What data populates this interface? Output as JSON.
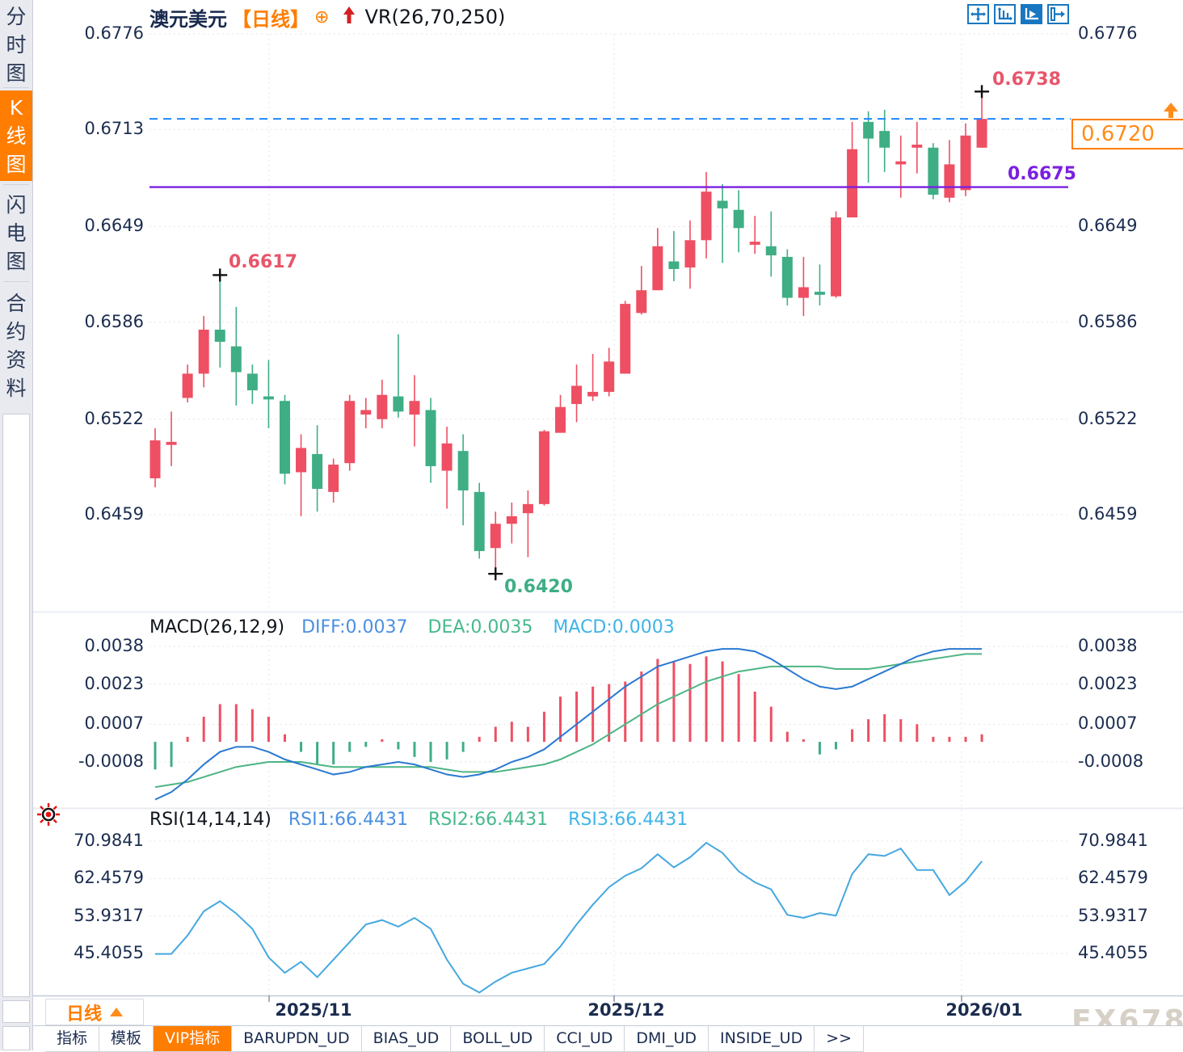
{
  "colors": {
    "up": "#ee4f63",
    "down": "#3fae85",
    "diff_line": "#2979d1",
    "dea_line": "#4db584",
    "rsi_line": "#45a8e0",
    "accent": "#ff7d00",
    "support": "#7b1fe0",
    "dashed": "#1e88ff",
    "grid": "#e4e4e8",
    "axis_text": "#1b2c4f"
  },
  "sidebar": {
    "tabs": [
      {
        "label": "分时图",
        "active": false
      },
      {
        "label": "K线图",
        "active": true
      },
      {
        "label": "闪电图",
        "active": false
      },
      {
        "label": "合约资料",
        "active": false
      }
    ]
  },
  "header": {
    "symbol": "澳元美元",
    "period_tag": "【日线】",
    "attach_icon": "⊕",
    "indicator": "VR(26,70,250)"
  },
  "toolbar": {
    "icons": [
      "pan-crosshair-icon",
      "axis-scale-icon",
      "axis-play-icon",
      "exit-right-icon"
    ]
  },
  "annotations": {
    "swing_high": "0.6617",
    "chart_high": "0.6738",
    "chart_low": "0.6420",
    "support_label": "0.6675",
    "last_price": "0.6720"
  },
  "macd_header": {
    "title": "MACD(26,12,9)",
    "diff": "DIFF:0.0037",
    "dea": "DEA:0.0035",
    "macd": "MACD:0.0003"
  },
  "rsi_header": {
    "title": "RSI(14,14,14)",
    "rsi1": "RSI1:66.4431",
    "rsi2": "RSI2:66.4431",
    "rsi3": "RSI3:66.4431"
  },
  "bottom_bar": {
    "timeframe": "日线",
    "tabs": [
      {
        "label": "指标",
        "active": false
      },
      {
        "label": "模板",
        "active": false
      },
      {
        "label": "VIP指标",
        "active": true
      },
      {
        "label": "BARUPDN_UD",
        "active": false
      },
      {
        "label": "BIAS_UD",
        "active": false
      },
      {
        "label": "BOLL_UD",
        "active": false
      },
      {
        "label": "CCI_UD",
        "active": false
      },
      {
        "label": "DMI_UD",
        "active": false
      },
      {
        "label": "INSIDE_UD",
        "active": false
      },
      {
        "label": ">>",
        "active": false
      }
    ]
  },
  "watermark": "FX678",
  "chart_data": {
    "type": "candlestick",
    "title": "澳元美元 日线 (AUD/USD daily) with VR(26,70,250), MACD(26,12,9), RSI(14,14,14)",
    "x_labels": [
      "2025/11",
      "2025/12",
      "2026/01"
    ],
    "axes": {
      "price": {
        "labels": [
          "0.6776",
          "0.6713",
          "0.6649",
          "0.6586",
          "0.6522",
          "0.6459"
        ],
        "values": [
          0.6776,
          0.6713,
          0.6649,
          0.6586,
          0.6522,
          0.6459
        ]
      },
      "macd": {
        "labels": [
          "0.0038",
          "0.0023",
          "0.0007",
          "-0.0008"
        ],
        "values": [
          0.0038,
          0.0023,
          0.0007,
          -0.0008
        ]
      },
      "rsi": {
        "labels": [
          "70.9841",
          "62.4579",
          "53.9317",
          "45.4055"
        ],
        "values": [
          70.9841,
          62.4579,
          53.9317,
          45.4055
        ]
      }
    },
    "levels": {
      "dashed_blue": 0.672,
      "support_purple": 0.6675
    },
    "markers": [
      {
        "index": 4,
        "price": 0.6617
      },
      {
        "index": 21,
        "price": 0.642
      },
      {
        "index": 51,
        "price": 0.6738
      }
    ],
    "ohlc": [
      [
        0.6483,
        0.6516,
        0.6477,
        0.6508
      ],
      [
        0.6505,
        0.6527,
        0.6491,
        0.6507
      ],
      [
        0.6536,
        0.6558,
        0.6533,
        0.6552
      ],
      [
        0.6552,
        0.659,
        0.6543,
        0.6581
      ],
      [
        0.6581,
        0.6617,
        0.6556,
        0.6573
      ],
      [
        0.657,
        0.6596,
        0.6531,
        0.6553
      ],
      [
        0.6552,
        0.6558,
        0.6532,
        0.6541
      ],
      [
        0.6537,
        0.6561,
        0.6516,
        0.6535
      ],
      [
        0.6534,
        0.6538,
        0.6479,
        0.6486
      ],
      [
        0.6487,
        0.6512,
        0.6458,
        0.6503
      ],
      [
        0.6499,
        0.6518,
        0.6461,
        0.6476
      ],
      [
        0.6474,
        0.6496,
        0.6467,
        0.6492
      ],
      [
        0.6493,
        0.6538,
        0.6488,
        0.6534
      ],
      [
        0.6525,
        0.6536,
        0.6516,
        0.6528
      ],
      [
        0.6522,
        0.6548,
        0.6516,
        0.6538
      ],
      [
        0.6537,
        0.6578,
        0.6523,
        0.6527
      ],
      [
        0.6525,
        0.6551,
        0.6504,
        0.6534
      ],
      [
        0.6528,
        0.6536,
        0.648,
        0.6491
      ],
      [
        0.6488,
        0.6517,
        0.6463,
        0.6506
      ],
      [
        0.6501,
        0.6512,
        0.6452,
        0.6475
      ],
      [
        0.6474,
        0.648,
        0.643,
        0.6435
      ],
      [
        0.6437,
        0.6461,
        0.642,
        0.6453
      ],
      [
        0.6453,
        0.6467,
        0.644,
        0.6458
      ],
      [
        0.646,
        0.6475,
        0.6431,
        0.6466
      ],
      [
        0.6466,
        0.6515,
        0.6465,
        0.6514
      ],
      [
        0.6513,
        0.6538,
        0.6513,
        0.653
      ],
      [
        0.6532,
        0.6558,
        0.652,
        0.6544
      ],
      [
        0.6537,
        0.6565,
        0.6534,
        0.654
      ],
      [
        0.654,
        0.6569,
        0.6537,
        0.656
      ],
      [
        0.6552,
        0.66,
        0.6552,
        0.6598
      ],
      [
        0.6592,
        0.6623,
        0.6591,
        0.6607
      ],
      [
        0.6607,
        0.6648,
        0.6607,
        0.6636
      ],
      [
        0.6626,
        0.6646,
        0.6613,
        0.6621
      ],
      [
        0.6622,
        0.6653,
        0.6608,
        0.664
      ],
      [
        0.664,
        0.6685,
        0.6628,
        0.6672
      ],
      [
        0.6666,
        0.6677,
        0.6625,
        0.6661
      ],
      [
        0.666,
        0.6673,
        0.6632,
        0.6648
      ],
      [
        0.6637,
        0.6656,
        0.6631,
        0.6639
      ],
      [
        0.6636,
        0.6659,
        0.6616,
        0.663
      ],
      [
        0.6629,
        0.6634,
        0.6597,
        0.6602
      ],
      [
        0.6602,
        0.6629,
        0.659,
        0.6609
      ],
      [
        0.6606,
        0.6624,
        0.6597,
        0.6604
      ],
      [
        0.6603,
        0.6659,
        0.6602,
        0.6655
      ],
      [
        0.6655,
        0.6718,
        0.6655,
        0.67
      ],
      [
        0.6718,
        0.6725,
        0.6678,
        0.6707
      ],
      [
        0.6712,
        0.6726,
        0.6685,
        0.6701
      ],
      [
        0.669,
        0.6709,
        0.6668,
        0.6692
      ],
      [
        0.6701,
        0.6718,
        0.6684,
        0.6703
      ],
      [
        0.6701,
        0.6704,
        0.6667,
        0.667
      ],
      [
        0.6668,
        0.6706,
        0.6665,
        0.669
      ],
      [
        0.6673,
        0.6717,
        0.6669,
        0.6709
      ],
      [
        0.6701,
        0.6738,
        0.6701,
        0.672
      ]
    ],
    "macd_hist": [
      -0.0011,
      -0.001,
      0.0002,
      0.001,
      0.0015,
      0.0015,
      0.0013,
      0.001,
      0.0003,
      -0.0004,
      -0.0009,
      -0.0009,
      -0.0004,
      -0.0002,
      0.0001,
      -0.0003,
      -0.0006,
      -0.0008,
      -0.0007,
      -0.0004,
      0.0002,
      0.0006,
      0.0008,
      0.0006,
      0.0012,
      0.0018,
      0.002,
      0.0022,
      0.0023,
      0.0024,
      0.0028,
      0.0033,
      0.0032,
      0.0031,
      0.0034,
      0.0032,
      0.0027,
      0.002,
      0.0014,
      0.0004,
      0.0001,
      -0.0005,
      -0.0003,
      0.0005,
      0.0009,
      0.0011,
      0.0009,
      0.0007,
      0.0002,
      0.0002,
      0.0002,
      0.0003
    ],
    "diff": [
      -0.0023,
      -0.002,
      -0.0015,
      -0.0009,
      -0.0004,
      -0.0002,
      -0.0002,
      -0.0004,
      -0.0007,
      -0.0009,
      -0.0011,
      -0.0013,
      -0.0012,
      -0.001,
      -0.0009,
      -0.0008,
      -0.0009,
      -0.0011,
      -0.0013,
      -0.0014,
      -0.0013,
      -0.0011,
      -0.0008,
      -0.0006,
      -0.0003,
      0.0002,
      0.0007,
      0.0012,
      0.0017,
      0.0022,
      0.0026,
      0.003,
      0.0032,
      0.0034,
      0.0036,
      0.0037,
      0.0037,
      0.0036,
      0.0033,
      0.0029,
      0.0025,
      0.0022,
      0.0021,
      0.0022,
      0.0025,
      0.0028,
      0.0031,
      0.0034,
      0.0036,
      0.0037,
      0.0037,
      0.0037
    ],
    "dea": [
      -0.0018,
      -0.0017,
      -0.0016,
      -0.0014,
      -0.0012,
      -0.001,
      -0.0009,
      -0.0008,
      -0.0008,
      -0.0008,
      -0.0009,
      -0.001,
      -0.001,
      -0.001,
      -0.001,
      -0.001,
      -0.001,
      -0.001,
      -0.0011,
      -0.0012,
      -0.0012,
      -0.0012,
      -0.0011,
      -0.001,
      -0.0009,
      -0.0007,
      -0.0004,
      -0.0001,
      0.0003,
      0.0007,
      0.0011,
      0.0015,
      0.0018,
      0.0021,
      0.0024,
      0.0026,
      0.0028,
      0.0029,
      0.003,
      0.003,
      0.003,
      0.003,
      0.0029,
      0.0029,
      0.0029,
      0.003,
      0.0031,
      0.0032,
      0.0033,
      0.0034,
      0.0035,
      0.0035
    ],
    "rsi": [
      45.3,
      45.3,
      49.5,
      55.0,
      57.3,
      54.5,
      51.0,
      44.5,
      41.0,
      43.5,
      40.0,
      44.0,
      48.0,
      52.0,
      53.0,
      51.5,
      53.5,
      51.0,
      44.0,
      38.5,
      36.5,
      39.0,
      41.0,
      42.0,
      43.0,
      47.0,
      52.0,
      56.5,
      60.5,
      63.1,
      64.8,
      68.0,
      65.0,
      67.3,
      70.6,
      68.3,
      64.1,
      61.6,
      60.0,
      54.2,
      53.5,
      54.6,
      54.0,
      63.5,
      68.0,
      67.6,
      69.3,
      64.4,
      64.4,
      58.7,
      61.8,
      66.4
    ]
  }
}
